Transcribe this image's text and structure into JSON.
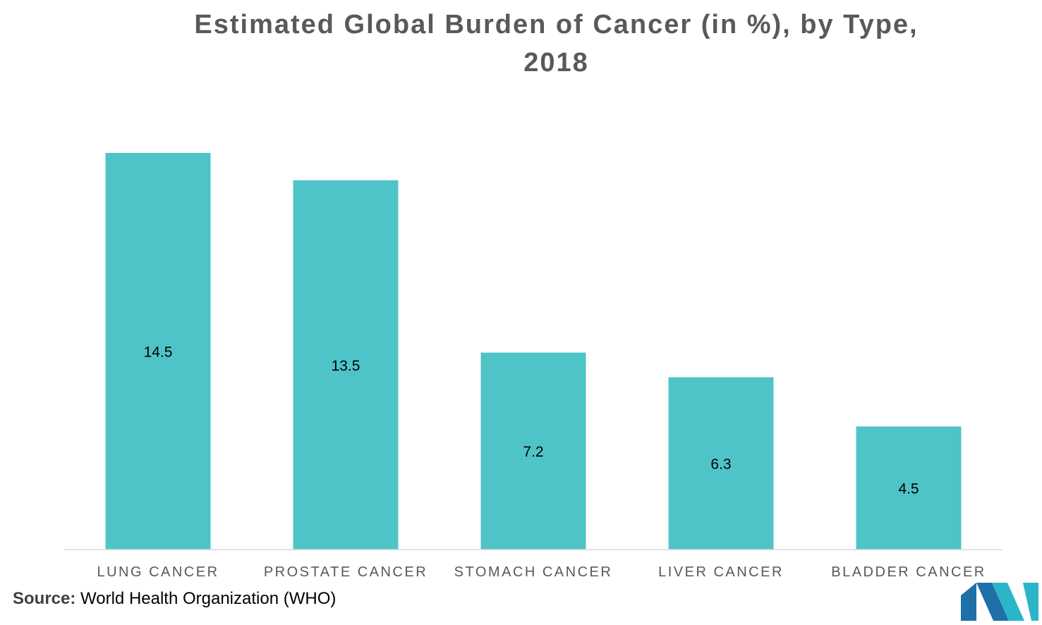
{
  "chart_data": {
    "type": "bar",
    "title_line1": "Estimated Global Burden of Cancer (in %), by Type,",
    "title_line2": "2018",
    "categories": [
      "LUNG CANCER",
      "PROSTATE CANCER",
      "STOMACH CANCER",
      "LIVER CANCER",
      "BLADDER CANCER"
    ],
    "values": [
      14.5,
      13.5,
      7.2,
      6.3,
      4.5
    ],
    "value_labels": [
      "14.5",
      "13.5",
      "7.2",
      "6.3",
      "4.5"
    ],
    "ylim": [
      0,
      14.5
    ],
    "xlabel": "",
    "ylabel": "",
    "grid": false,
    "bar_color": "#4FC4C8"
  },
  "source": {
    "label": "Source:",
    "text": "World Health Organization (WHO)"
  },
  "logo": {
    "icon": "company-logo-icon",
    "colors": [
      "#1F6FA8",
      "#2BB5C9"
    ]
  }
}
